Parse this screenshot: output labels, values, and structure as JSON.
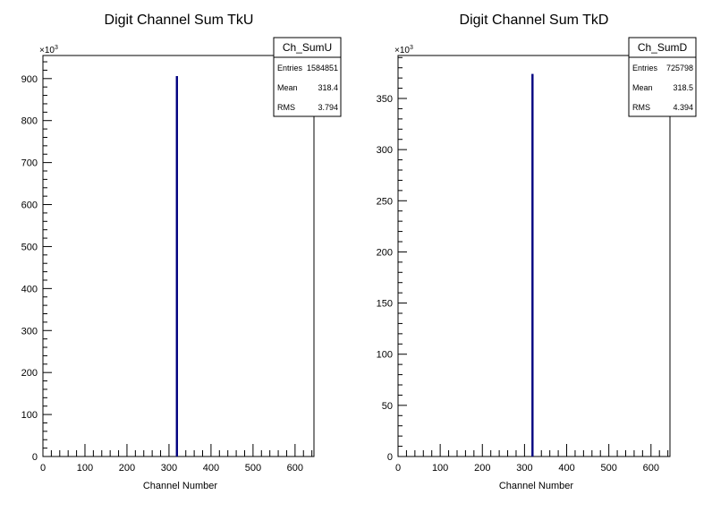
{
  "chart_data": [
    {
      "type": "bar",
      "title": "Digit Channel Sum TkU",
      "xlabel": "Channel Number",
      "ylabel": "",
      "xlim": [
        0,
        645
      ],
      "ylim": [
        0,
        955
      ],
      "y_exponent_label": "×10",
      "y_exponent_power": "3",
      "x_ticks": [
        0,
        100,
        200,
        300,
        400,
        500,
        600
      ],
      "y_ticks": [
        0,
        100,
        200,
        300,
        400,
        500,
        600,
        700,
        800,
        900
      ],
      "bin_x": 318.4,
      "bin_value": 906,
      "series_color": "#000080",
      "stats": {
        "name": "Ch_SumU",
        "rows": [
          {
            "label": "Entries",
            "value": "1584851"
          },
          {
            "label": "Mean",
            "value": "318.4"
          },
          {
            "label": "RMS",
            "value": "3.794"
          }
        ]
      }
    },
    {
      "type": "bar",
      "title": "Digit Channel Sum TkD",
      "xlabel": "Channel Number",
      "ylabel": "",
      "xlim": [
        0,
        645
      ],
      "ylim": [
        0,
        392
      ],
      "y_exponent_label": "×10",
      "y_exponent_power": "3",
      "x_ticks": [
        0,
        100,
        200,
        300,
        400,
        500,
        600
      ],
      "y_ticks": [
        0,
        50,
        100,
        150,
        200,
        250,
        300,
        350
      ],
      "bin_x": 318.5,
      "bin_value": 374,
      "series_color": "#000080",
      "stats": {
        "name": "Ch_SumD",
        "rows": [
          {
            "label": "Entries",
            "value": "725798"
          },
          {
            "label": "Mean",
            "value": "318.5"
          },
          {
            "label": "RMS",
            "value": "4.394"
          }
        ]
      }
    }
  ]
}
